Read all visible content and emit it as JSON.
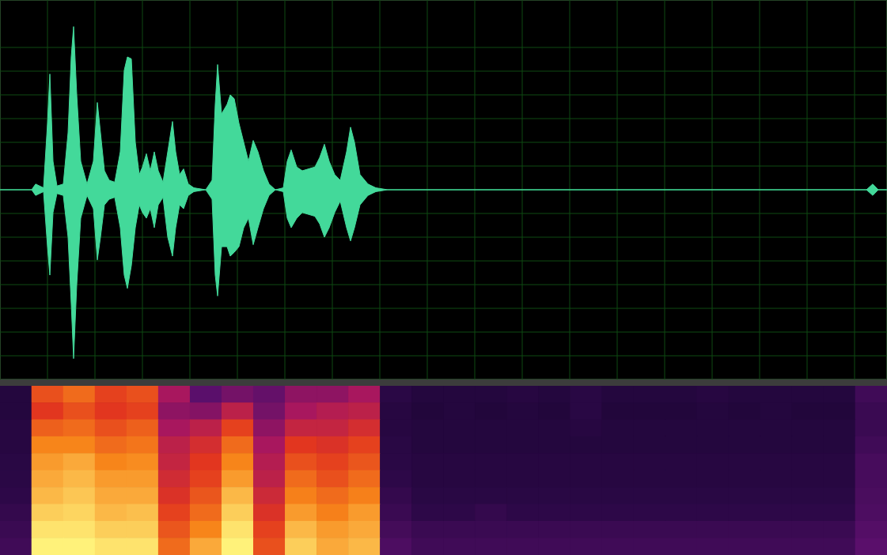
{
  "chart_data": [
    {
      "type": "area",
      "color": "#43d99a",
      "grid": true,
      "tick_labels": false,
      "xlim": [
        0,
        1121
      ],
      "ylim": [
        -1,
        1
      ],
      "xticks": [
        0,
        60,
        120,
        180,
        240,
        300,
        360,
        420,
        480,
        540,
        600,
        660,
        720,
        780,
        840,
        900,
        960,
        1020,
        1080
      ],
      "yticks": [
        -1,
        -0.875,
        -0.75,
        -0.625,
        -0.5,
        -0.375,
        -0.25,
        -0.125,
        0,
        0.125,
        0.25,
        0.375,
        0.5,
        0.625,
        0.75,
        0.875,
        1
      ],
      "x": [
        0,
        40,
        45,
        50,
        55,
        60,
        63,
        67,
        72,
        80,
        86,
        90,
        93,
        97,
        102,
        110,
        118,
        123,
        127,
        132,
        138,
        145,
        152,
        157,
        161,
        166,
        171,
        176,
        180,
        185,
        190,
        195,
        200,
        206,
        212,
        218,
        222,
        227,
        232,
        238,
        245,
        260,
        268,
        272,
        275,
        280,
        287,
        291,
        296,
        302,
        308,
        314,
        320,
        326,
        333,
        340,
        348,
        358,
        363,
        368,
        375,
        382,
        390,
        398,
        404,
        410,
        416,
        423,
        430,
        438,
        443,
        448,
        455,
        465,
        475,
        490,
        1095,
        1103,
        1110,
        1121
      ],
      "upper": [
        0,
        0,
        0.03,
        0.02,
        0.01,
        0.35,
        0.61,
        0.15,
        0.02,
        0.03,
        0.3,
        0.7,
        0.86,
        0.5,
        0.15,
        0.03,
        0.15,
        0.46,
        0.3,
        0.1,
        0.05,
        0.04,
        0.2,
        0.63,
        0.7,
        0.69,
        0.25,
        0.08,
        0.12,
        0.19,
        0.1,
        0.2,
        0.1,
        0.04,
        0.2,
        0.36,
        0.2,
        0.08,
        0.11,
        0.03,
        0.01,
        0,
        0.05,
        0.45,
        0.66,
        0.4,
        0.45,
        0.5,
        0.48,
        0.35,
        0.25,
        0.15,
        0.26,
        0.2,
        0.1,
        0.03,
        0,
        0.01,
        0.15,
        0.21,
        0.12,
        0.1,
        0.11,
        0.12,
        0.17,
        0.24,
        0.15,
        0.08,
        0.05,
        0.2,
        0.33,
        0.25,
        0.08,
        0.03,
        0.01,
        0,
        0,
        0.03,
        0,
        0
      ],
      "lower": [
        0,
        0,
        -0.03,
        -0.02,
        -0.01,
        -0.3,
        -0.45,
        -0.12,
        -0.02,
        -0.03,
        -0.25,
        -0.6,
        -0.89,
        -0.5,
        -0.15,
        -0.03,
        -0.1,
        -0.37,
        -0.25,
        -0.08,
        -0.05,
        -0.04,
        -0.2,
        -0.45,
        -0.52,
        -0.4,
        -0.2,
        -0.08,
        -0.12,
        -0.15,
        -0.1,
        -0.2,
        -0.08,
        -0.04,
        -0.25,
        -0.35,
        -0.2,
        -0.08,
        -0.1,
        -0.03,
        -0.01,
        0,
        -0.05,
        -0.45,
        -0.56,
        -0.3,
        -0.3,
        -0.35,
        -0.33,
        -0.3,
        -0.2,
        -0.15,
        -0.29,
        -0.2,
        -0.1,
        -0.03,
        0,
        -0.01,
        -0.15,
        -0.2,
        -0.15,
        -0.12,
        -0.13,
        -0.14,
        -0.18,
        -0.25,
        -0.2,
        -0.12,
        -0.06,
        -0.2,
        -0.27,
        -0.2,
        -0.08,
        -0.03,
        -0.01,
        0,
        0,
        -0.03,
        0,
        0
      ]
    },
    {
      "type": "heatmap",
      "tick_labels": false,
      "xlim": [
        0,
        1121
      ],
      "zlim": [
        0,
        1
      ],
      "cells": [
        [
          0.2,
          0.75,
          0.8,
          0.72,
          0.75,
          0.55,
          0.4,
          0.45,
          0.42,
          0.5,
          0.5,
          0.55,
          0.25,
          0.2,
          0.2,
          0.2,
          0.22,
          0.2,
          0.24,
          0.2,
          0.2,
          0.2,
          0.22,
          0.2,
          0.2,
          0.2,
          0.2,
          0.32
        ],
        [
          0.2,
          0.7,
          0.75,
          0.7,
          0.72,
          0.5,
          0.48,
          0.6,
          0.45,
          0.55,
          0.58,
          0.6,
          0.22,
          0.18,
          0.2,
          0.18,
          0.2,
          0.18,
          0.24,
          0.18,
          0.18,
          0.18,
          0.2,
          0.18,
          0.2,
          0.18,
          0.18,
          0.3
        ],
        [
          0.22,
          0.78,
          0.8,
          0.75,
          0.78,
          0.55,
          0.6,
          0.72,
          0.5,
          0.62,
          0.62,
          0.66,
          0.22,
          0.2,
          0.2,
          0.2,
          0.2,
          0.2,
          0.22,
          0.2,
          0.2,
          0.2,
          0.2,
          0.2,
          0.2,
          0.2,
          0.2,
          0.3
        ],
        [
          0.22,
          0.85,
          0.85,
          0.8,
          0.82,
          0.6,
          0.66,
          0.8,
          0.55,
          0.7,
          0.68,
          0.72,
          0.24,
          0.2,
          0.2,
          0.2,
          0.2,
          0.2,
          0.2,
          0.2,
          0.2,
          0.2,
          0.2,
          0.2,
          0.2,
          0.2,
          0.2,
          0.32
        ],
        [
          0.24,
          0.88,
          0.9,
          0.85,
          0.86,
          0.62,
          0.7,
          0.85,
          0.58,
          0.75,
          0.72,
          0.76,
          0.25,
          0.22,
          0.22,
          0.22,
          0.22,
          0.22,
          0.22,
          0.22,
          0.22,
          0.22,
          0.22,
          0.22,
          0.22,
          0.22,
          0.22,
          0.34
        ],
        [
          0.25,
          0.9,
          0.92,
          0.88,
          0.88,
          0.65,
          0.72,
          0.88,
          0.6,
          0.8,
          0.75,
          0.8,
          0.26,
          0.22,
          0.22,
          0.22,
          0.22,
          0.22,
          0.22,
          0.22,
          0.22,
          0.22,
          0.22,
          0.22,
          0.22,
          0.22,
          0.22,
          0.34
        ],
        [
          0.26,
          0.92,
          0.94,
          0.9,
          0.9,
          0.68,
          0.76,
          0.92,
          0.64,
          0.84,
          0.8,
          0.84,
          0.28,
          0.24,
          0.24,
          0.24,
          0.24,
          0.24,
          0.24,
          0.24,
          0.24,
          0.24,
          0.24,
          0.24,
          0.24,
          0.24,
          0.24,
          0.35
        ],
        [
          0.28,
          0.95,
          0.96,
          0.92,
          0.93,
          0.72,
          0.8,
          0.95,
          0.68,
          0.88,
          0.84,
          0.88,
          0.3,
          0.26,
          0.26,
          0.28,
          0.26,
          0.26,
          0.26,
          0.26,
          0.26,
          0.26,
          0.26,
          0.26,
          0.26,
          0.26,
          0.26,
          0.36
        ],
        [
          0.3,
          0.98,
          0.98,
          0.95,
          0.95,
          0.76,
          0.85,
          0.98,
          0.72,
          0.92,
          0.88,
          0.9,
          0.33,
          0.3,
          0.3,
          0.3,
          0.3,
          0.3,
          0.3,
          0.3,
          0.3,
          0.3,
          0.3,
          0.3,
          0.3,
          0.3,
          0.3,
          0.38
        ],
        [
          0.32,
          1,
          1,
          0.98,
          0.98,
          0.8,
          0.9,
          1,
          0.75,
          0.95,
          0.9,
          0.92,
          0.36,
          0.32,
          0.32,
          0.32,
          0.32,
          0.32,
          0.32,
          0.32,
          0.32,
          0.32,
          0.32,
          0.32,
          0.32,
          0.32,
          0.32,
          0.4
        ]
      ]
    }
  ]
}
